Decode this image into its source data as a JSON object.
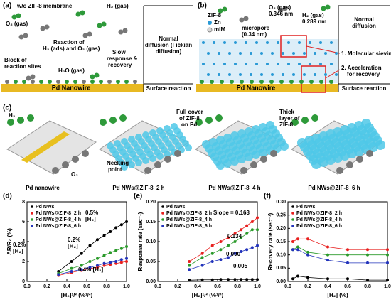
{
  "panel_a": {
    "label": "(a)",
    "membrane": "w/o ZIF-8 membrane",
    "h2": "H₂ (gas)",
    "o2": "O₂ (gas)",
    "reaction": [
      "Reaction of",
      "H₂ (ads) and O₂ (gas)"
    ],
    "block": [
      "Block of",
      "reaction sites"
    ],
    "h2o": "H₂O (gas)",
    "slow": [
      "Slow",
      "response &",
      "recovery"
    ],
    "diffusion": [
      "Normal",
      "diffusion (Fickian",
      "diffusion)"
    ],
    "wire": "Pd Nanowire",
    "surface": "Surface reaction"
  },
  "panel_b": {
    "label": "(b)",
    "zif": "ZIF-8",
    "zn": "Zn",
    "mim": "mIM",
    "o2": [
      "O₂ (gas)",
      "0.346 nm"
    ],
    "h2": [
      "H₂ (gas)",
      "0.289 nm"
    ],
    "micropore": [
      "micropore",
      "(0.34 nm)"
    ],
    "diffusion": [
      "Normal",
      "diffusion"
    ],
    "sieving": "1. Molecular sieving effect",
    "acceleration": [
      "2. Acceleration",
      "for recovery"
    ],
    "wire": "Pd Nanowire",
    "surface": "Surface reaction"
  },
  "panel_c": {
    "label": "(c)",
    "h2": "H₂",
    "o2": "O₂",
    "necking": [
      "Necking",
      "point"
    ],
    "full": [
      "Full cover",
      "of ZIF-8",
      "on Pd"
    ],
    "thick": [
      "Thick",
      "layer of",
      "ZIF-8"
    ],
    "captions": [
      "Pd nanowire",
      "Pd NWs@ZIF-8_2 h",
      "Pd NWs@ZIF-8_4 h",
      "Pd NWs@ZIF-8_6 h"
    ]
  },
  "chart_data": [
    {
      "type": "line",
      "label": "(d)",
      "x_label": "[H₂]¹/² (%¹/²)",
      "y_label": "ΔR/R₀ (%)",
      "x": [
        0.316,
        0.447,
        0.548,
        0.632,
        0.707,
        0.775,
        0.837,
        0.894,
        0.949,
        1.0
      ],
      "xlim": [
        0,
        1.0
      ],
      "xticks": [
        {
          "value": 0,
          "label": "0.0"
        },
        {
          "value": 0.2,
          "label": "0.2"
        },
        {
          "value": 0.4,
          "label": "0.4"
        },
        {
          "value": 0.6,
          "label": "0.6"
        },
        {
          "value": 0.8,
          "label": "0.8"
        },
        {
          "value": 1.0,
          "label": "1.0"
        }
      ],
      "ylim": [
        0,
        8
      ],
      "yticks": [
        0,
        2,
        4,
        6,
        8
      ],
      "series": [
        {
          "name": "Pd NWs",
          "color": "#000000",
          "values": [
            1.0,
            2.0,
            2.8,
            3.6,
            4.2,
            4.6,
            5.0,
            5.4,
            5.7,
            6.0
          ]
        },
        {
          "name": "Pd NWs@ZIF-8_2 h",
          "color": "#e8201f",
          "values": [
            0.6,
            0.9,
            1.1,
            1.3,
            1.4,
            1.6,
            1.7,
            1.8,
            1.9,
            2.0
          ]
        },
        {
          "name": "Pd NWs@ZIF-8_4 h",
          "color": "#2a9a2a",
          "values": [
            0.8,
            1.3,
            1.6,
            2.0,
            2.3,
            2.6,
            2.9,
            3.1,
            3.3,
            3.5
          ]
        },
        {
          "name": "Pd NWs@ZIF-8_6 h",
          "color": "#2233bb",
          "values": [
            0.7,
            1.0,
            1.2,
            1.4,
            1.6,
            1.8,
            1.9,
            2.0,
            2.2,
            2.3
          ]
        }
      ],
      "annotations": [
        {
          "text": [
            "0.5%",
            "[H₂]"
          ],
          "color": "#000000"
        },
        {
          "text": [
            "0.2%",
            "[H₂]"
          ],
          "color": "#2a9a2a"
        },
        {
          "text": [
            "0.2%",
            "[H₂]"
          ],
          "color": "#2233bb"
        },
        {
          "text": [
            "0.4% [H₂]"
          ],
          "color": "#e8201f"
        }
      ]
    },
    {
      "type": "line",
      "label": "(e)",
      "x_label": "[H₂]¹/² (%¹/²)",
      "y_label": "Response rate (sec⁻¹)",
      "x": [
        0.316,
        0.447,
        0.548,
        0.632,
        0.707,
        0.775,
        0.837,
        0.894,
        0.949,
        1.0
      ],
      "xlim": [
        0,
        1.0
      ],
      "xticks": [
        {
          "value": 0,
          "label": "0.0"
        },
        {
          "value": 0.2,
          "label": "0.2"
        },
        {
          "value": 0.4,
          "label": "0.4"
        },
        {
          "value": 0.6,
          "label": "0.6"
        },
        {
          "value": 0.8,
          "label": "0.8"
        },
        {
          "value": 1.0,
          "label": "1.0"
        }
      ],
      "ylim": [
        0,
        0.2
      ],
      "yticks": [
        {
          "value": 0,
          "label": "0.00"
        },
        {
          "value": 0.05,
          "label": "0.05"
        },
        {
          "value": 0.1,
          "label": "0.10"
        },
        {
          "value": 0.15,
          "label": "0.15"
        },
        {
          "value": 0.2,
          "label": "0.20"
        }
      ],
      "series": [
        {
          "name": "Pd NWs",
          "color": "#000000",
          "values": [
            0.003,
            0.004,
            0.004,
            0.005,
            0.005,
            0.005,
            0.005,
            0.005,
            0.005,
            0.005
          ]
        },
        {
          "name": "Pd NWs@ZIF-8_2 h",
          "color": "#e8201f",
          "values": [
            0.05,
            0.07,
            0.09,
            0.1,
            0.11,
            0.12,
            0.13,
            0.14,
            0.15,
            0.16
          ]
        },
        {
          "name": "Pd NWs@ZIF-8_4 h",
          "color": "#2a9a2a",
          "values": [
            0.04,
            0.06,
            0.07,
            0.08,
            0.09,
            0.1,
            0.11,
            0.12,
            0.13,
            0.13
          ]
        },
        {
          "name": "Pd NWs@ZIF-8_6 h",
          "color": "#2233bb",
          "values": [
            0.03,
            0.04,
            0.05,
            0.055,
            0.06,
            0.07,
            0.075,
            0.08,
            0.085,
            0.09
          ]
        }
      ],
      "annotations": [
        {
          "text": [
            "Slope = 0.163"
          ],
          "color": "#e8201f"
        },
        {
          "text": [
            "0.134"
          ],
          "color": "#2a9a2a"
        },
        {
          "text": [
            "0.090"
          ],
          "color": "#2233bb"
        },
        {
          "text": [
            "0.005"
          ],
          "color": "#000000"
        }
      ]
    },
    {
      "type": "line",
      "label": "(f)",
      "x_label": "[H₂] (%)",
      "y_label": "Recovery rate (sec⁻¹)",
      "x": [
        0.05,
        0.1,
        0.2,
        0.4,
        0.6,
        0.8,
        1.0
      ],
      "xlim": [
        0,
        1.0
      ],
      "xticks": [
        {
          "value": 0,
          "label": "0.0"
        },
        {
          "value": 0.2,
          "label": "0.2"
        },
        {
          "value": 0.4,
          "label": "0.4"
        },
        {
          "value": 0.6,
          "label": "0.6"
        },
        {
          "value": 0.8,
          "label": "0.8"
        },
        {
          "value": 1.0,
          "label": "1.0"
        }
      ],
      "ylim": [
        0,
        0.3
      ],
      "yticks": [
        {
          "value": 0,
          "label": "0.00"
        },
        {
          "value": 0.05,
          "label": "0.05"
        },
        {
          "value": 0.1,
          "label": "0.10"
        },
        {
          "value": 0.15,
          "label": "0.15"
        },
        {
          "value": 0.2,
          "label": "0.20"
        },
        {
          "value": 0.25,
          "label": "0.25"
        },
        {
          "value": 0.3,
          "label": "0.30"
        }
      ],
      "series": [
        {
          "name": "Pd NWs",
          "color": "#000000",
          "values": [
            0.01,
            0.02,
            0.015,
            0.01,
            0.01,
            0.005,
            0.005
          ]
        },
        {
          "name": "Pd NWs@ZIF-8_2 h",
          "color": "#e8201f",
          "values": [
            0.15,
            0.16,
            0.16,
            0.13,
            0.12,
            0.12,
            0.12
          ]
        },
        {
          "name": "Pd NWs@ZIF-8_4 h",
          "color": "#2a9a2a",
          "values": [
            0.12,
            0.13,
            0.11,
            0.1,
            0.1,
            0.1,
            0.1
          ]
        },
        {
          "name": "Pd NWs@ZIF-8_6 h",
          "color": "#2233bb",
          "values": [
            0.12,
            0.12,
            0.1,
            0.08,
            0.07,
            0.07,
            0.07
          ]
        }
      ],
      "annotations": []
    }
  ]
}
